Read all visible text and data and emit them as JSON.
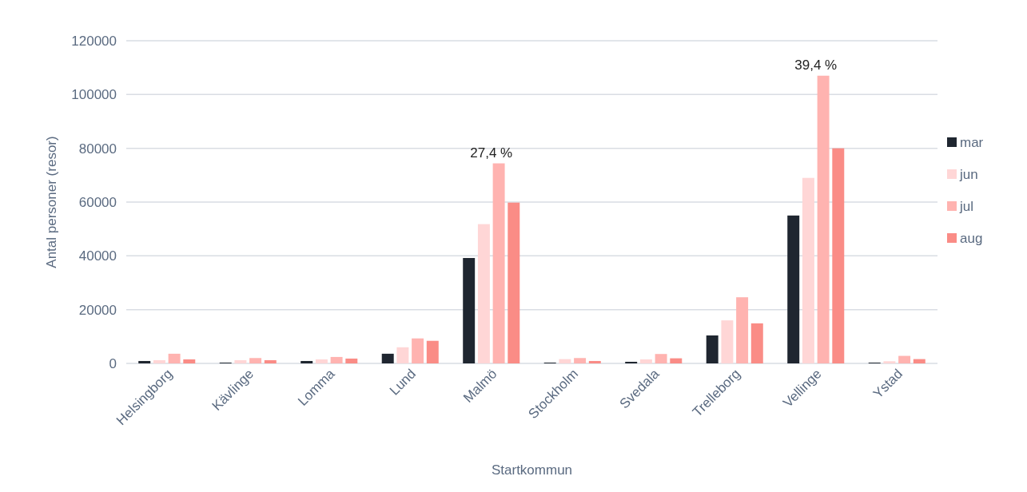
{
  "chart_data": {
    "type": "bar",
    "xlabel": "Startkommun",
    "ylabel": "Antal personer (resor)",
    "categories": [
      "Helsingborg",
      "Kävlinge",
      "Lomma",
      "Lund",
      "Malmö",
      "Stockholm",
      "Svedala",
      "Trelleborg",
      "Vellinge",
      "Ystad"
    ],
    "series": [
      {
        "name": "mar",
        "color": "#1f2630",
        "values": [
          900,
          300,
          900,
          3600,
          39200,
          300,
          600,
          10400,
          55000,
          300
        ]
      },
      {
        "name": "jun",
        "color": "#ffd6d6",
        "values": [
          1200,
          1200,
          1500,
          6000,
          51800,
          1600,
          1500,
          16000,
          69000,
          800
        ]
      },
      {
        "name": "jul",
        "color": "#ffb3b0",
        "values": [
          3600,
          2000,
          2400,
          9300,
          74400,
          2000,
          3500,
          24600,
          107000,
          2800
        ]
      },
      {
        "name": "aug",
        "color": "#fa8c86",
        "values": [
          1500,
          1200,
          1800,
          8400,
          59800,
          900,
          1900,
          14900,
          80000,
          1600
        ]
      }
    ],
    "ylim": [
      0,
      120000
    ],
    "yticks": [
      0,
      20000,
      40000,
      60000,
      80000,
      100000,
      120000
    ],
    "grid": "y",
    "legend": "right",
    "annotations": [
      {
        "text": "27,4 %",
        "x": "Malmö",
        "y": 74400
      },
      {
        "text": "39,4 %",
        "x": "Vellinge",
        "y": 107000
      }
    ]
  }
}
